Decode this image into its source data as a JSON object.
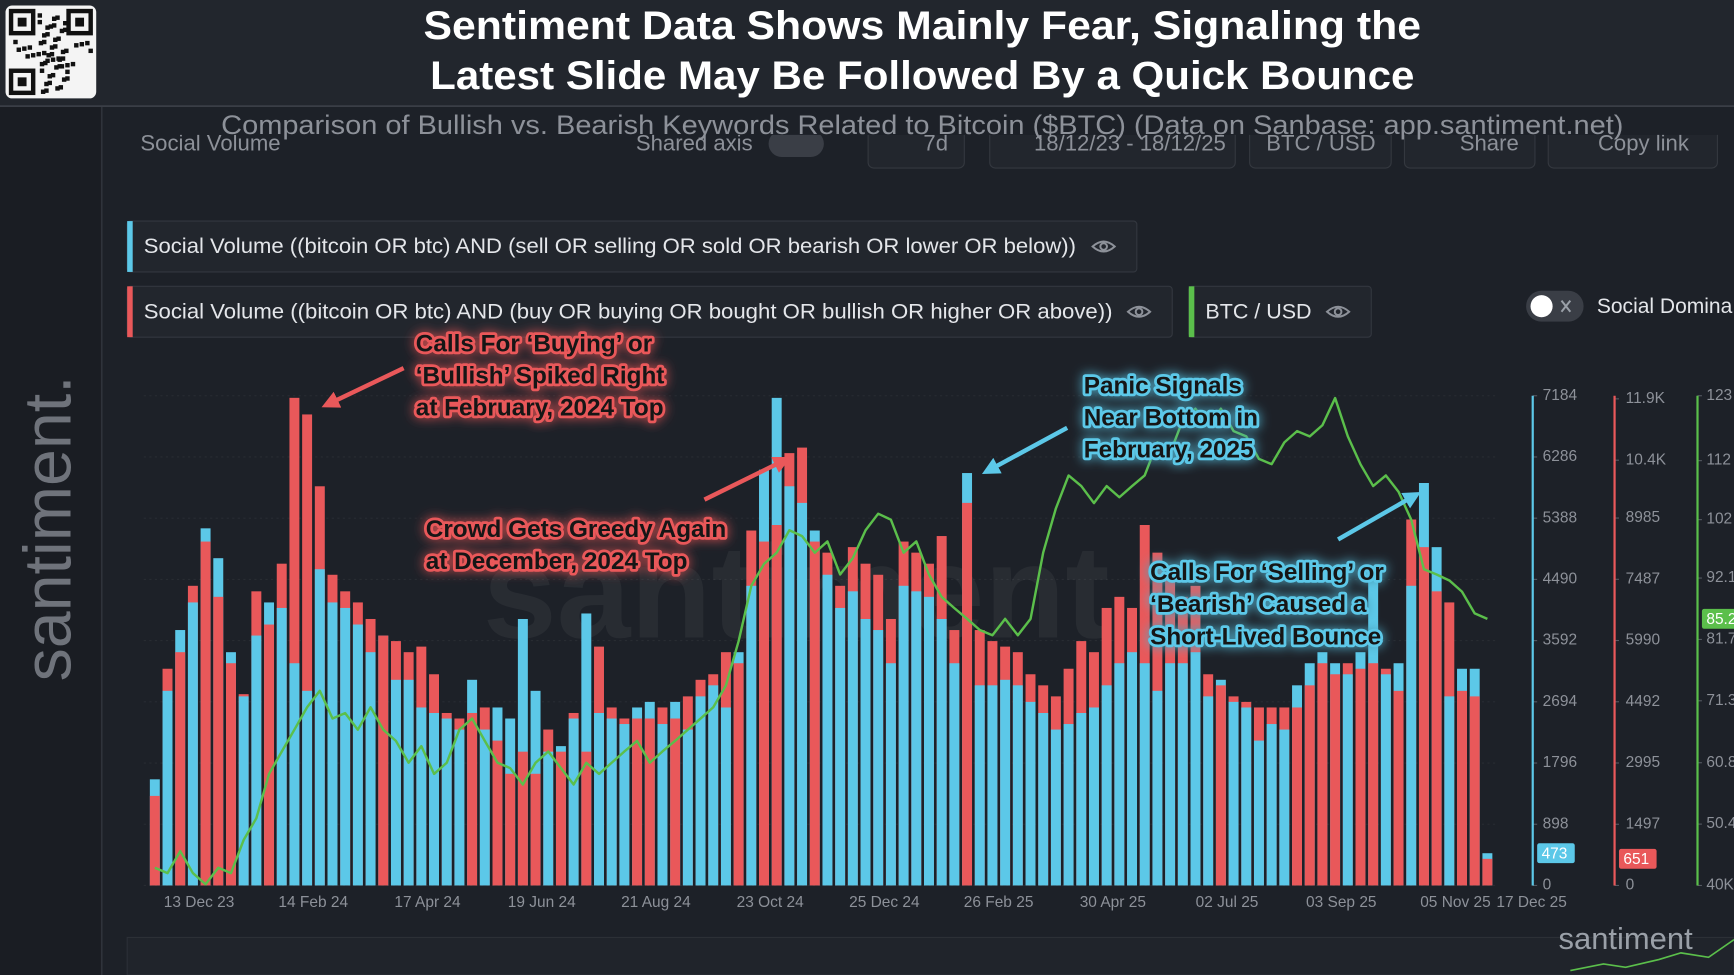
{
  "chart_data": {
    "type": "bar",
    "title": [
      "Sentiment Data Shows Mainly Fear, Signaling the",
      "Latest Slide May Be Followed By a Quick Bounce"
    ],
    "subtitle": "Comparison of Bullish vs. Bearish Keywords Related to Bitcoin ($BTC) (Data on Sanbase: app.santiment.net)",
    "categories": [
      "13 Dec 23",
      null,
      null,
      null,
      null,
      null,
      null,
      null,
      null,
      "14 Feb 24",
      null,
      null,
      null,
      null,
      null,
      null,
      null,
      null,
      "17 Apr 24",
      null,
      null,
      null,
      null,
      null,
      null,
      null,
      null,
      "19 Jun 24",
      null,
      null,
      null,
      null,
      null,
      null,
      null,
      null,
      "21 Aug 24",
      null,
      null,
      null,
      null,
      null,
      null,
      null,
      null,
      "23 Oct 24",
      null,
      null,
      null,
      null,
      null,
      null,
      null,
      null,
      "25 Dec 24",
      null,
      null,
      null,
      null,
      null,
      null,
      null,
      null,
      "26 Feb 25",
      null,
      null,
      null,
      null,
      null,
      null,
      null,
      null,
      "30 Apr 25",
      null,
      null,
      null,
      null,
      null,
      null,
      null,
      null,
      "02 Jul 25",
      null,
      null,
      null,
      null,
      null,
      null,
      null,
      null,
      "03 Sep 25",
      null,
      null,
      null,
      null,
      null,
      null,
      null,
      null,
      "05 Nov 25",
      null,
      null,
      null,
      null,
      null,
      "17 Dec 25"
    ],
    "series": [
      {
        "name": "Social Volume ((bitcoin OR btc) AND (sell OR selling OR sold OR bearish OR lower OR below))",
        "color": "#5cc8e8",
        "axis": "y",
        "type": "bar",
        "values": [
          1557,
          2855,
          3747,
          4152,
          5239,
          4801,
          3422,
          2774,
          3666,
          4152,
          4071,
          3260,
          2855,
          4639,
          4152,
          4071,
          3828,
          3422,
          3666,
          3017,
          3017,
          2611,
          2530,
          2449,
          2287,
          3017,
          2287,
          2611,
          2449,
          3909,
          2855,
          1963,
          2044,
          2449,
          3990,
          2530,
          2449,
          2368,
          2611,
          2693,
          2368,
          2693,
          2287,
          2774,
          2936,
          2611,
          3422,
          4396,
          6099,
          7153,
          5856,
          5612,
          5207,
          4558,
          4071,
          4315,
          3909,
          3747,
          3260,
          4396,
          4315,
          4234,
          3909,
          3260,
          6050,
          2936,
          2936,
          3017,
          2936,
          2693,
          2530,
          2287,
          2368,
          2530,
          2611,
          2936,
          3260,
          3422,
          3260,
          2855,
          3260,
          3260,
          3422,
          2774,
          3017,
          2693,
          2611,
          2125,
          2368,
          2287,
          2936,
          3260,
          3422,
          3260,
          3098,
          3422,
          4477,
          3098,
          3260,
          4396,
          5904,
          4963,
          2774,
          3179,
          3179,
          473
        ]
      },
      {
        "name": "Social Volume ((bitcoin OR btc) AND (buy OR buying OR bought OR bullish OR higher OR above))",
        "color": "#e9585a",
        "axis": "y2",
        "type": "bar",
        "values": [
          2190,
          5300,
          5705,
          7328,
          8410,
          7058,
          5435,
          4678,
          7193,
          6381,
          7869,
          11925,
          11519,
          9762,
          7598,
          7193,
          6922,
          6517,
          6111,
          5976,
          5705,
          5841,
          5165,
          4218,
          4083,
          4218,
          4353,
          3542,
          2731,
          3272,
          2731,
          3813,
          3272,
          4218,
          3272,
          5841,
          4353,
          4083,
          4083,
          4083,
          4353,
          4083,
          4624,
          5029,
          5165,
          5705,
          5435,
          8680,
          8410,
          8815,
          10573,
          10708,
          8410,
          8139,
          7328,
          8274,
          7869,
          7598,
          6517,
          8410,
          8139,
          7869,
          8545,
          6246,
          9356,
          6246,
          5976,
          5841,
          5705,
          5165,
          4894,
          4624,
          5300,
          5976,
          5705,
          6787,
          7058,
          6787,
          8815,
          8139,
          7598,
          7058,
          7328,
          5165,
          4894,
          4624,
          4489,
          4353,
          4353,
          4353,
          4353,
          4894,
          5435,
          5165,
          5435,
          5300,
          5435,
          5300,
          4759,
          8950,
          8274,
          7193,
          6922,
          4759,
          4624,
          651
        ]
      },
      {
        "name": "BTC / USD",
        "color": "#5bbf4b",
        "axis": "y3",
        "type": "line",
        "values": [
          43000,
          42100,
          45800,
          42100,
          40200,
          43000,
          42100,
          47700,
          51400,
          58900,
          62700,
          66400,
          70200,
          73000,
          68300,
          69200,
          66400,
          70200,
          66400,
          64500,
          60800,
          63600,
          58900,
          60800,
          66400,
          68300,
          64500,
          60800,
          59900,
          57100,
          60800,
          62700,
          59900,
          57100,
          60800,
          58900,
          60800,
          62700,
          64500,
          60800,
          62700,
          64500,
          66400,
          68300,
          70200,
          73900,
          81400,
          90800,
          94500,
          96400,
          100200,
          99200,
          96400,
          98300,
          92700,
          95500,
          100200,
          103000,
          102000,
          96400,
          98300,
          92700,
          88900,
          87000,
          85200,
          83300,
          82400,
          85200,
          82400,
          85200,
          96400,
          103900,
          109500,
          107700,
          104800,
          107700,
          105800,
          107700,
          109500,
          115100,
          113300,
          118900,
          120800,
          118000,
          120800,
          117000,
          116100,
          112300,
          111400,
          115100,
          117000,
          116100,
          118000,
          122600,
          116100,
          111400,
          107700,
          109500,
          106700,
          102000,
          93600,
          92700,
          91700,
          89800,
          86100,
          85200
        ],
        "value_labels": [
          null,
          null,
          null,
          null,
          null,
          null,
          null,
          null,
          null,
          null,
          null,
          null,
          null,
          null,
          null,
          null,
          null,
          null,
          null,
          null,
          null,
          null,
          null,
          null,
          null,
          null,
          null,
          null,
          null,
          null,
          null,
          null,
          null,
          null,
          null,
          null,
          null,
          null,
          null,
          null,
          null,
          null,
          null,
          null,
          null,
          null,
          null,
          null,
          null,
          null,
          null,
          null,
          null,
          null,
          null,
          null,
          null,
          null,
          null,
          null,
          null,
          null,
          null,
          null,
          null,
          null,
          null,
          null,
          null,
          null,
          null,
          null,
          null,
          null,
          null,
          null,
          null,
          null,
          null,
          null,
          null,
          null,
          null,
          null,
          null,
          null,
          null,
          null,
          null,
          null,
          null,
          null,
          null,
          null,
          null,
          null,
          null,
          null,
          null,
          null,
          null,
          null,
          null,
          null,
          null,
          "85.2"
        ]
      }
    ],
    "ylim": [
      0,
      7184
    ],
    "yticks": [
      0,
      898,
      1796,
      2694,
      3592,
      4490,
      5388,
      6286,
      7184
    ],
    "y2lim": [
      0,
      11976
    ],
    "y2ticks": [
      0,
      1497,
      2995,
      4492,
      5990,
      7487,
      8985,
      {
        "value": 10400,
        "label": "10.4K"
      },
      {
        "value": 11900,
        "label": "11.9K"
      }
    ],
    "y3lim": [
      40000,
      123000
    ],
    "y3ticks": [
      {
        "value": 40000,
        "label": "40K"
      },
      {
        "value": 50400,
        "label": "50.4"
      },
      {
        "value": 60800,
        "label": "60.8"
      },
      {
        "value": 71300,
        "label": "71.3"
      },
      {
        "value": 81700,
        "label": "81.7"
      },
      {
        "value": 92100,
        "label": "92.1"
      },
      {
        "value": 102000,
        "label": "102"
      },
      {
        "value": 112000,
        "label": "112"
      },
      {
        "value": 123000,
        "label": "123"
      }
    ],
    "grid": true,
    "annotations": [
      {
        "color": "#e9585a",
        "lines": [
          "Calls For ‘Buying’ or",
          "‘Bullish’ Spiked Right",
          "at February, 2024 Top"
        ]
      },
      {
        "color": "#e9585a",
        "lines": [
          "Crowd Gets Greedy Again",
          "at December, 2024 Top"
        ]
      },
      {
        "color": "#5cc8e8",
        "lines": [
          "Panic Signals",
          "Near Bottom in",
          "February, 2025"
        ]
      },
      {
        "color": "#5cc8e8",
        "lines": [
          "Calls For ‘Selling’ or",
          "‘Bearish’ Caused a",
          "Short-Lived Bounce"
        ]
      }
    ]
  },
  "ui": {
    "brand": "santiment.",
    "watermark": "santiment",
    "footer_logo": "santiment",
    "toolbar": [
      "Social Volume",
      "Shared axis",
      "7d",
      "18/12/23 - 18/12/25",
      "BTC / USD",
      "Share",
      "Copy link"
    ],
    "toggle_label": "Social Domina"
  }
}
